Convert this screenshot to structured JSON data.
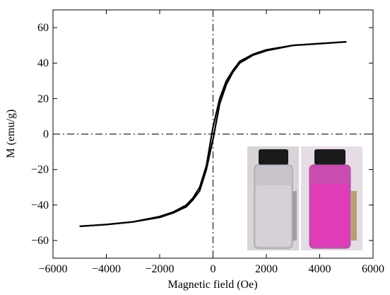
{
  "chart_data": {
    "type": "line",
    "x_label": "Magnetic field (Oe)",
    "y_label": "M (emu/g)",
    "x": [
      -5000,
      -4000,
      -3000,
      -2000,
      -1500,
      -1000,
      -750,
      -500,
      -250,
      0,
      250,
      500,
      750,
      1000,
      1500,
      2000,
      3000,
      4000,
      5000
    ],
    "series": [
      {
        "color": "#000000",
        "values": [
          -52,
          -51,
          -49.5,
          -46.5,
          -44,
          -40,
          -36,
          -30,
          -18,
          4,
          20,
          30,
          36,
          41,
          45,
          47.5,
          50,
          51,
          52
        ]
      },
      {
        "color": "#000000",
        "values": [
          -52,
          -51,
          -49.5,
          -47,
          -44.5,
          -41,
          -37,
          -32,
          -20,
          -3,
          17,
          28,
          35,
          40,
          44.5,
          47,
          50,
          51,
          52
        ]
      }
    ],
    "xlim": [
      -6000,
      6000
    ],
    "xticks": [
      {
        "value": -6000,
        "label": "−6000"
      },
      {
        "value": -4000,
        "label": "−4000"
      },
      {
        "value": -2000,
        "label": "−2000"
      },
      0,
      2000,
      4000,
      6000
    ],
    "ylim": [
      -70,
      70
    ],
    "yticks": [
      {
        "value": -60,
        "label": "−60"
      },
      {
        "value": -40,
        "label": "−40"
      },
      {
        "value": -20,
        "label": "−20"
      },
      0,
      20,
      40,
      60
    ],
    "grid": false
  }
}
